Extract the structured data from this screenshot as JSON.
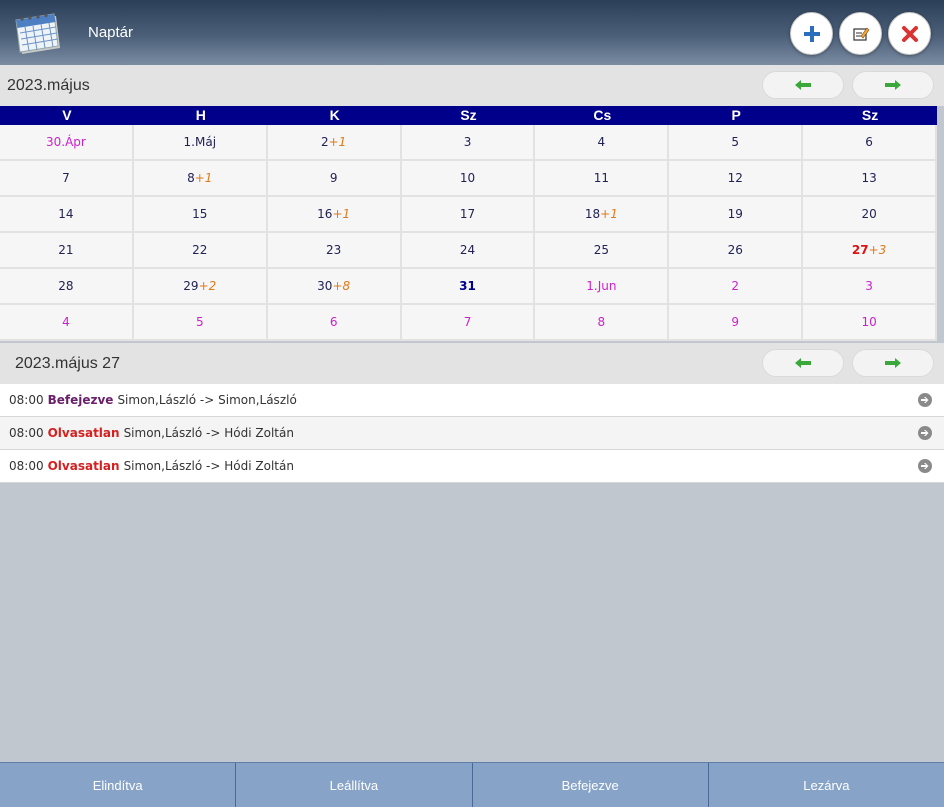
{
  "app": {
    "title": "Naptár",
    "icon": "calendar-icon"
  },
  "actions": {
    "add": "plus-icon",
    "edit": "edit-icon",
    "close": "close-icon"
  },
  "month_bar": {
    "title": "2023.május",
    "prev": "arrow-left-icon",
    "next": "arrow-right-icon"
  },
  "calendar": {
    "weekdays": [
      "V",
      "H",
      "K",
      "Sz",
      "Cs",
      "P",
      "Sz"
    ],
    "weeks": [
      [
        {
          "d": "30.Ápr",
          "t": "other"
        },
        {
          "d": "1.Máj"
        },
        {
          "d": "2",
          "x": "+1"
        },
        {
          "d": "3"
        },
        {
          "d": "4"
        },
        {
          "d": "5"
        },
        {
          "d": "6"
        }
      ],
      [
        {
          "d": "7"
        },
        {
          "d": "8",
          "x": "+1"
        },
        {
          "d": "9"
        },
        {
          "d": "10"
        },
        {
          "d": "11"
        },
        {
          "d": "12"
        },
        {
          "d": "13"
        }
      ],
      [
        {
          "d": "14"
        },
        {
          "d": "15"
        },
        {
          "d": "16",
          "x": "+1"
        },
        {
          "d": "17"
        },
        {
          "d": "18",
          "x": "+1"
        },
        {
          "d": "19"
        },
        {
          "d": "20"
        }
      ],
      [
        {
          "d": "21"
        },
        {
          "d": "22"
        },
        {
          "d": "23"
        },
        {
          "d": "24"
        },
        {
          "d": "25"
        },
        {
          "d": "26"
        },
        {
          "d": "27",
          "x": "+3",
          "t": "sel"
        }
      ],
      [
        {
          "d": "28"
        },
        {
          "d": "29",
          "x": "+2"
        },
        {
          "d": "30",
          "x": "+8"
        },
        {
          "d": "31",
          "t": "today"
        },
        {
          "d": "1.Jun",
          "t": "other"
        },
        {
          "d": "2",
          "t": "other"
        },
        {
          "d": "3",
          "t": "other"
        }
      ],
      [
        {
          "d": "4",
          "t": "other"
        },
        {
          "d": "5",
          "t": "other"
        },
        {
          "d": "6",
          "t": "other"
        },
        {
          "d": "7",
          "t": "other"
        },
        {
          "d": "8",
          "t": "other"
        },
        {
          "d": "9",
          "t": "other"
        },
        {
          "d": "10",
          "t": "other"
        }
      ]
    ]
  },
  "day_bar": {
    "title": "2023.május 27"
  },
  "events": [
    {
      "time": "08:00",
      "status": "Befejezve",
      "status_type": "done",
      "text": "Simon,László -> Simon,László"
    },
    {
      "time": "08:00",
      "status": "Olvasatlan",
      "status_type": "unread",
      "text": "Simon,László -> Hódi Zoltán"
    },
    {
      "time": "08:00",
      "status": "Olvasatlan",
      "status_type": "unread",
      "text": "Simon,László -> Hódi Zoltán"
    }
  ],
  "footer_tabs": [
    "Elindítva",
    "Leállítva",
    "Befejezve",
    "Lezárva"
  ],
  "colors": {
    "header_dark": "#2c3f58",
    "weekday_bar": "#00008b",
    "other_month": "#cc22cc",
    "extra": "#e07a1a",
    "selected": "#dd1111",
    "footer": "#87a3c8"
  }
}
